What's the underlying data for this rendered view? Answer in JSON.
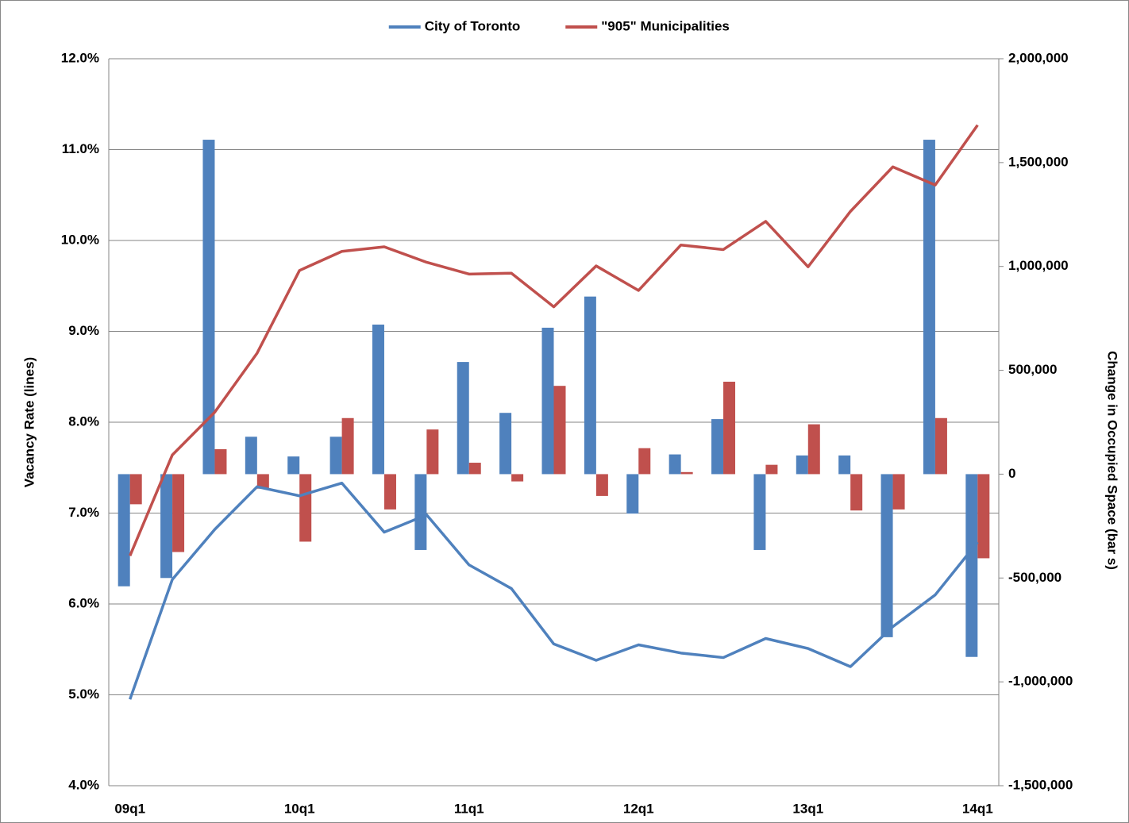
{
  "chart_data": {
    "type": "combo",
    "y_label": "Vacancy Rate (lines)",
    "y2_label": "Change in Occupied Space (bar s)",
    "categories": [
      "09q1",
      null,
      null,
      null,
      "10q1",
      null,
      null,
      null,
      "11q1",
      null,
      null,
      null,
      "12q1",
      null,
      null,
      null,
      "13q1",
      null,
      null,
      null,
      "14q1"
    ],
    "series": [
      {
        "name": "City of Toronto",
        "color": "#4f81bd",
        "values": [
          4.95,
          6.27,
          6.82,
          7.29,
          7.19,
          7.33,
          6.79,
          6.98,
          6.43,
          6.17,
          5.56,
          5.38,
          5.55,
          5.46,
          5.41,
          5.62,
          5.51,
          5.31,
          5.75,
          6.1,
          6.68
        ],
        "y2_values": [
          -540000,
          -500000,
          1610000,
          180000,
          85000,
          180000,
          720000,
          -365000,
          540000,
          295000,
          705000,
          855000,
          -190000,
          95000,
          265000,
          -365000,
          90000,
          90000,
          -785000,
          1610000,
          -880000
        ]
      },
      {
        "name": "\"905\" Municipalities",
        "color": "#c0504d",
        "values": [
          6.53,
          7.64,
          8.11,
          8.76,
          9.67,
          9.88,
          9.93,
          9.76,
          9.63,
          9.64,
          9.27,
          9.72,
          9.45,
          9.95,
          9.9,
          10.21,
          9.71,
          10.32,
          10.81,
          10.61,
          11.27
        ],
        "y2_values": [
          -145000,
          -375000,
          120000,
          -70000,
          -325000,
          270000,
          -170000,
          215000,
          55000,
          -35000,
          425000,
          -105000,
          125000,
          10000,
          445000,
          45000,
          240000,
          -175000,
          -170000,
          270000,
          -405000
        ]
      }
    ],
    "ylim": [
      4,
      12
    ],
    "yticks": [
      {
        "value": 4,
        "label": "4.0%"
      },
      {
        "value": 5,
        "label": "5.0%"
      },
      {
        "value": 6,
        "label": "6.0%"
      },
      {
        "value": 7,
        "label": "7.0%"
      },
      {
        "value": 8,
        "label": "8.0%"
      },
      {
        "value": 9,
        "label": "9.0%"
      },
      {
        "value": 10,
        "label": "10.0%"
      },
      {
        "value": 11,
        "label": "11.0%"
      },
      {
        "value": 12,
        "label": "12.0%"
      }
    ],
    "y2lim": [
      -1500000,
      2000000
    ],
    "y2ticks": [
      {
        "value": -1500000,
        "label": "-1,500,000"
      },
      {
        "value": -1000000,
        "label": "-1,000,000"
      },
      {
        "value": -500000,
        "label": "-500,000"
      },
      0,
      {
        "value": 500000,
        "label": "500,000"
      },
      {
        "value": 1000000,
        "label": "1,000,000"
      },
      {
        "value": 1500000,
        "label": "1,500,000"
      },
      {
        "value": 2000000,
        "label": "2,000,000"
      }
    ],
    "grid": true,
    "legend": "top"
  }
}
